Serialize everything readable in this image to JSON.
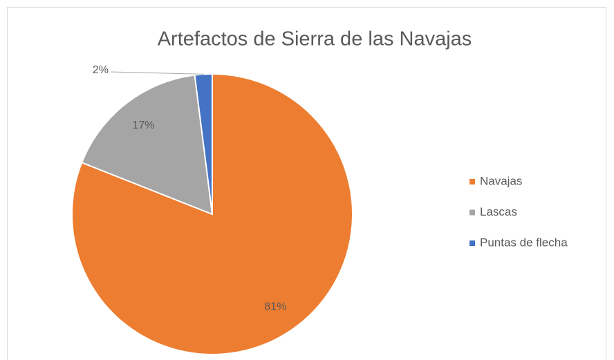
{
  "chart_data": {
    "type": "pie",
    "title": "Artefactos de Sierra de las Navajas",
    "categories": [
      "Navajas",
      "Lascas",
      "Puntas de flecha"
    ],
    "values": [
      81,
      17,
      2
    ],
    "value_labels": [
      "81%",
      "17%",
      "2%"
    ],
    "colors": [
      "#ed7d31",
      "#a5a5a5",
      "#4472c4"
    ],
    "legend": "right"
  }
}
